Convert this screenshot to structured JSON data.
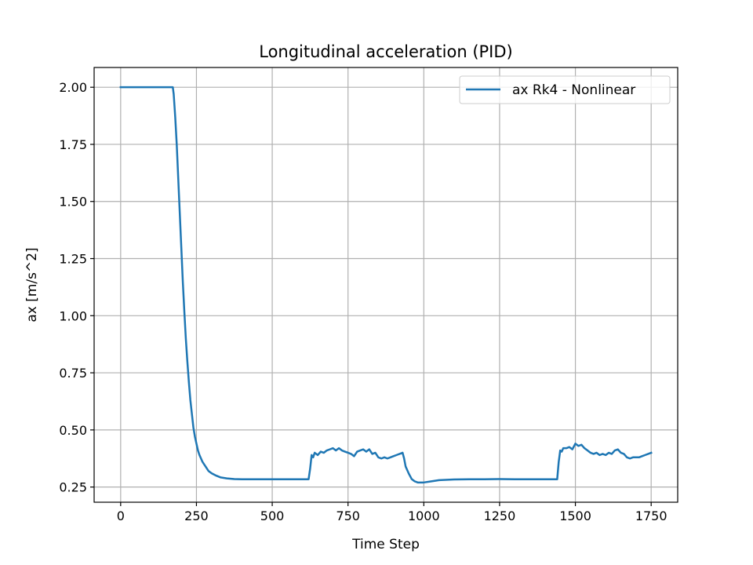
{
  "chart_data": {
    "type": "line",
    "title": "Longitudinal acceleration (PID)",
    "xlabel": "Time Step",
    "ylabel": "ax [m/s^2]",
    "xlim": [
      -87.5,
      1837.5
    ],
    "ylim": [
      0.1835,
      2.0865
    ],
    "xticks": [
      0,
      250,
      500,
      750,
      1000,
      1250,
      1500,
      1750
    ],
    "xtick_labels": [
      "0",
      "250",
      "500",
      "750",
      "1000",
      "1250",
      "1500",
      "1750"
    ],
    "yticks": [
      0.25,
      0.5,
      0.75,
      1.0,
      1.25,
      1.5,
      1.75,
      2.0
    ],
    "ytick_labels": [
      "0.25",
      "0.50",
      "0.75",
      "1.00",
      "1.25",
      "1.50",
      "1.75",
      "2.00"
    ],
    "grid": true,
    "legend": {
      "position": "upper right"
    },
    "series": [
      {
        "name": "ax Rk4 - Nonlinear",
        "color": "#1f77b4",
        "x": [
          0,
          50,
          100,
          150,
          172,
          175,
          180,
          185,
          190,
          195,
          200,
          205,
          210,
          215,
          220,
          225,
          230,
          235,
          240,
          245,
          250,
          255,
          260,
          270,
          280,
          290,
          300,
          315,
          330,
          350,
          375,
          400,
          450,
          500,
          550,
          600,
          615,
          620,
          625,
          630,
          635,
          640,
          645,
          650,
          660,
          670,
          680,
          690,
          700,
          710,
          720,
          730,
          740,
          750,
          760,
          770,
          780,
          790,
          800,
          810,
          820,
          830,
          840,
          850,
          860,
          870,
          880,
          890,
          900,
          910,
          920,
          930,
          935,
          940,
          950,
          960,
          970,
          980,
          990,
          1000,
          1025,
          1050,
          1100,
          1150,
          1200,
          1250,
          1300,
          1350,
          1400,
          1435,
          1440,
          1445,
          1450,
          1455,
          1460,
          1470,
          1480,
          1490,
          1500,
          1510,
          1520,
          1530,
          1540,
          1550,
          1560,
          1570,
          1580,
          1590,
          1600,
          1610,
          1620,
          1630,
          1640,
          1650,
          1660,
          1670,
          1680,
          1690,
          1700,
          1710,
          1720,
          1730,
          1740,
          1750
        ],
        "y": [
          2.0,
          2.0,
          2.0,
          2.0,
          2.0,
          1.97,
          1.87,
          1.75,
          1.6,
          1.45,
          1.3,
          1.15,
          1.02,
          0.9,
          0.8,
          0.71,
          0.63,
          0.57,
          0.51,
          0.47,
          0.44,
          0.41,
          0.39,
          0.36,
          0.34,
          0.32,
          0.31,
          0.3,
          0.292,
          0.288,
          0.285,
          0.284,
          0.284,
          0.284,
          0.284,
          0.284,
          0.284,
          0.284,
          0.33,
          0.39,
          0.38,
          0.4,
          0.395,
          0.39,
          0.405,
          0.4,
          0.41,
          0.415,
          0.42,
          0.41,
          0.42,
          0.41,
          0.405,
          0.4,
          0.395,
          0.385,
          0.405,
          0.41,
          0.415,
          0.405,
          0.415,
          0.395,
          0.4,
          0.38,
          0.375,
          0.38,
          0.375,
          0.38,
          0.385,
          0.39,
          0.395,
          0.4,
          0.375,
          0.34,
          0.31,
          0.285,
          0.275,
          0.27,
          0.27,
          0.27,
          0.275,
          0.28,
          0.283,
          0.284,
          0.284,
          0.285,
          0.284,
          0.284,
          0.284,
          0.284,
          0.284,
          0.36,
          0.41,
          0.405,
          0.42,
          0.42,
          0.425,
          0.415,
          0.44,
          0.43,
          0.435,
          0.42,
          0.41,
          0.4,
          0.395,
          0.4,
          0.39,
          0.395,
          0.39,
          0.4,
          0.395,
          0.41,
          0.415,
          0.4,
          0.395,
          0.38,
          0.375,
          0.38,
          0.38,
          0.38,
          0.385,
          0.39,
          0.395,
          0.4
        ]
      }
    ]
  }
}
